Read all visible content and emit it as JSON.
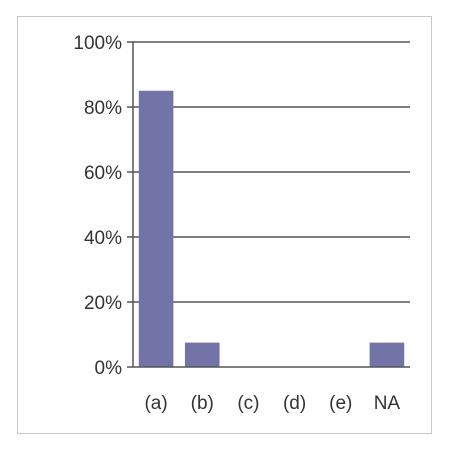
{
  "chart_data": {
    "type": "bar",
    "categories": [
      "(a)",
      "(b)",
      "(c)",
      "(d)",
      "(e)",
      "NA"
    ],
    "values": [
      85,
      7.5,
      0,
      0,
      0,
      7.5
    ],
    "ylim": [
      0,
      100
    ],
    "yticks": [
      "0%",
      "20%",
      "40%",
      "60%",
      "80%",
      "100%"
    ],
    "grid": true,
    "bar_color": "#7274a8",
    "title": "",
    "xlabel": "",
    "ylabel": ""
  }
}
